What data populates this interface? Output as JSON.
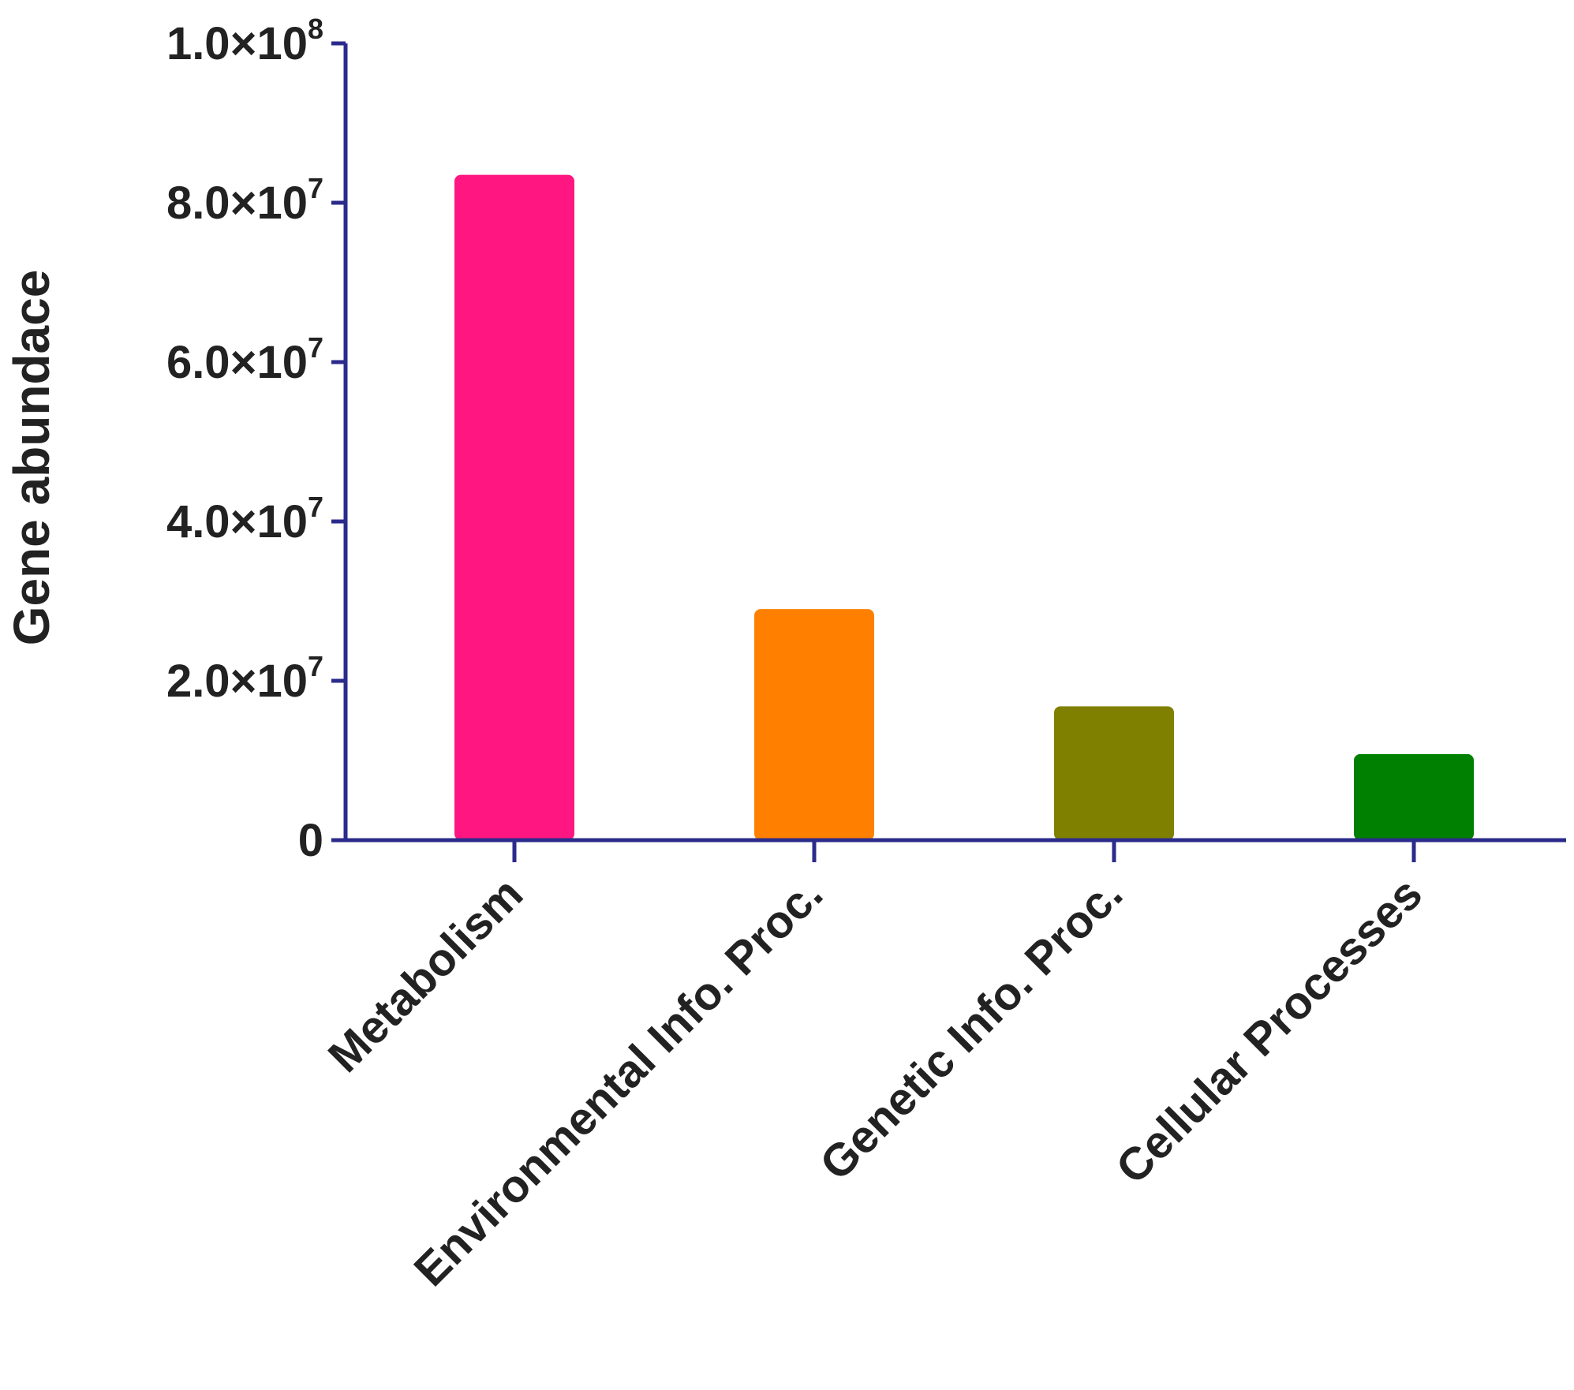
{
  "chart_data": {
    "type": "bar",
    "categories": [
      "Metabolism",
      "Environmental Info. Proc.",
      "Genetic Info. Proc.",
      "Cellular Processes"
    ],
    "values": [
      83500000,
      29000000,
      16800000,
      10800000
    ],
    "colors": [
      "#ff1680",
      "#ff8000",
      "#808000",
      "#008000"
    ],
    "title": "",
    "xlabel": "",
    "ylabel": "Gene abundace",
    "ylim": [
      0,
      100000000
    ],
    "yticks": [
      {
        "value": 0,
        "mantissa": "0",
        "times": "",
        "base": "",
        "exp": ""
      },
      {
        "value": 20000000,
        "mantissa": "2.0",
        "times": "×",
        "base": "10",
        "exp": "7"
      },
      {
        "value": 40000000,
        "mantissa": "4.0",
        "times": "×",
        "base": "10",
        "exp": "7"
      },
      {
        "value": 60000000,
        "mantissa": "6.0",
        "times": "×",
        "base": "10",
        "exp": "7"
      },
      {
        "value": 80000000,
        "mantissa": "8.0",
        "times": "×",
        "base": "10",
        "exp": "7"
      },
      {
        "value": 100000000,
        "mantissa": "1.0",
        "times": "×",
        "base": "10",
        "exp": "8"
      }
    ],
    "grid": false,
    "legend": "none",
    "axis_color": "#2b2b8c"
  }
}
